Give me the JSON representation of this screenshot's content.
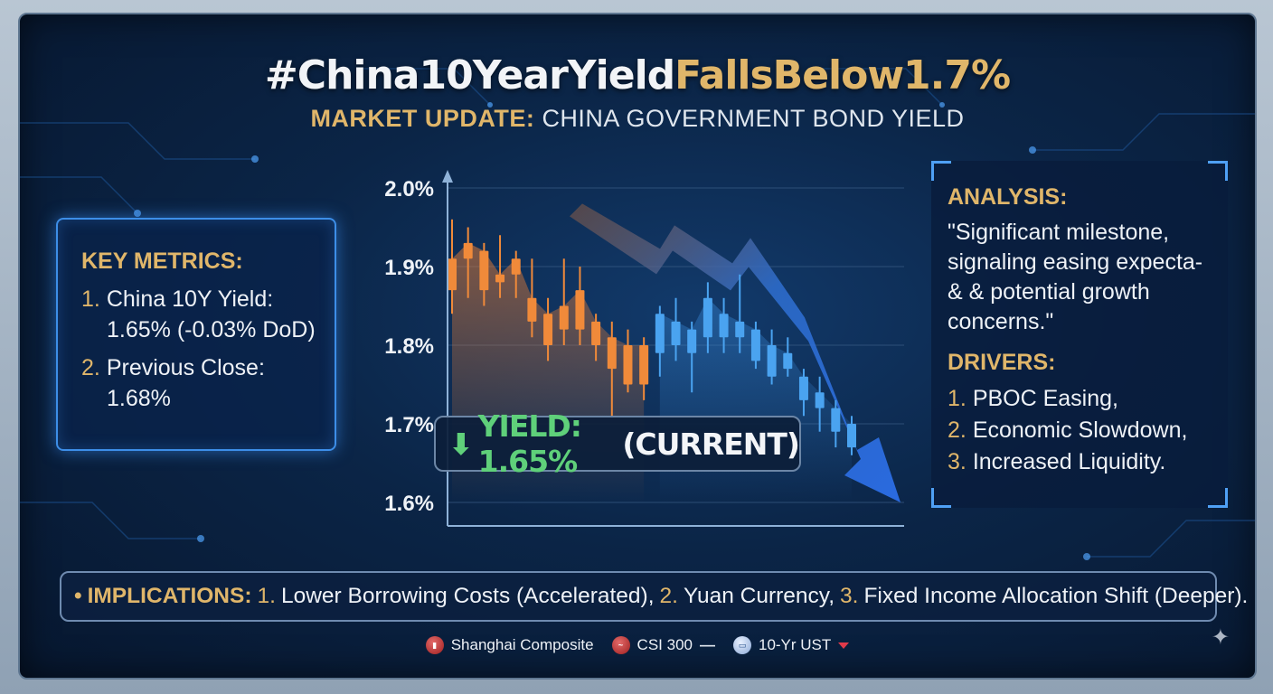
{
  "title": {
    "part1": "#China10YearYield",
    "part2": "FallsBelow1.7%"
  },
  "subtitle": {
    "part1": "MARKET UPDATE:",
    "part2": "CHINA GOVERNMENT BOND YIELD"
  },
  "key_metrics": {
    "heading": "KEY METRICS:",
    "items": [
      {
        "num": "1.",
        "label": "China 10Y Yield:",
        "value": "1.65% (-0.03% DoD)"
      },
      {
        "num": "2.",
        "label": "Previous Close:",
        "value": "1.68%"
      }
    ]
  },
  "analysis": {
    "heading": "ANALYSIS:",
    "quote_lines": [
      "\"Significant milestone,",
      "signaling easing expecta-",
      "& & potential growth",
      "concerns.\""
    ],
    "drivers_heading": "DRIVERS:",
    "drivers": [
      {
        "num": "1.",
        "text": "PBOC Easing,"
      },
      {
        "num": "2.",
        "text": "Economic Slowdown,"
      },
      {
        "num": "3.",
        "text": "Increased Liquidity."
      }
    ]
  },
  "callout": {
    "arrow": "⬇",
    "label": "YIELD: 1.65%",
    "suffix": "(CURRENT)"
  },
  "implications": {
    "bullet": "•",
    "heading": "IMPLICATIONS:",
    "items": [
      {
        "num": "1.",
        "text": "Lower Borrowing Costs (Accelerated),"
      },
      {
        "num": "2.",
        "text": "Yuan Currency,"
      },
      {
        "num": "3.",
        "text": "Fixed Income Allocation Shift (Deeper)."
      }
    ]
  },
  "tickers": [
    {
      "icon": "shanghai-composite-icon",
      "label": "Shanghai Composite",
      "trend": ""
    },
    {
      "icon": "csi-300-icon",
      "label": "CSI 300",
      "trend": "flat"
    },
    {
      "icon": "us-treasury-icon",
      "label": "10-Yr UST",
      "trend": "down"
    }
  ],
  "colors": {
    "accent_gold": "#e0b66a",
    "down_orange": "#f08a3a",
    "down_blue": "#4aa3f0",
    "current_green": "#5fd07a",
    "trend_arrow_blue": "#2f6fd0"
  },
  "chart_data": {
    "type": "candlestick",
    "title": "",
    "xlabel": "",
    "ylabel": "",
    "ylim": [
      1.6,
      2.0
    ],
    "yticks": [
      "2.0%",
      "1.9%",
      "1.8%",
      "1.7%",
      "1.6%"
    ],
    "ytick_values": [
      2.0,
      1.9,
      1.8,
      1.7,
      1.6
    ],
    "grid": true,
    "legend": "none",
    "candles": [
      {
        "open": 1.91,
        "close": 1.87,
        "high": 1.96,
        "low": 1.84,
        "color": "orange"
      },
      {
        "open": 1.93,
        "close": 1.91,
        "high": 1.95,
        "low": 1.86,
        "color": "orange"
      },
      {
        "open": 1.92,
        "close": 1.87,
        "high": 1.93,
        "low": 1.85,
        "color": "orange"
      },
      {
        "open": 1.89,
        "close": 1.88,
        "high": 1.94,
        "low": 1.86,
        "color": "orange"
      },
      {
        "open": 1.91,
        "close": 1.89,
        "high": 1.92,
        "low": 1.86,
        "color": "orange"
      },
      {
        "open": 1.86,
        "close": 1.83,
        "high": 1.91,
        "low": 1.81,
        "color": "orange"
      },
      {
        "open": 1.84,
        "close": 1.8,
        "high": 1.86,
        "low": 1.78,
        "color": "orange"
      },
      {
        "open": 1.85,
        "close": 1.82,
        "high": 1.91,
        "low": 1.8,
        "color": "orange"
      },
      {
        "open": 1.87,
        "close": 1.82,
        "high": 1.9,
        "low": 1.8,
        "color": "orange"
      },
      {
        "open": 1.83,
        "close": 1.8,
        "high": 1.84,
        "low": 1.78,
        "color": "orange"
      },
      {
        "open": 1.81,
        "close": 1.77,
        "high": 1.83,
        "low": 1.71,
        "color": "orange"
      },
      {
        "open": 1.8,
        "close": 1.75,
        "high": 1.82,
        "low": 1.74,
        "color": "orange"
      },
      {
        "open": 1.8,
        "close": 1.75,
        "high": 1.81,
        "low": 1.73,
        "color": "orange"
      },
      {
        "open": 1.79,
        "close": 1.84,
        "high": 1.85,
        "low": 1.76,
        "color": "blue"
      },
      {
        "open": 1.8,
        "close": 1.83,
        "high": 1.86,
        "low": 1.78,
        "color": "blue"
      },
      {
        "open": 1.79,
        "close": 1.82,
        "high": 1.83,
        "low": 1.74,
        "color": "blue"
      },
      {
        "open": 1.81,
        "close": 1.86,
        "high": 1.88,
        "low": 1.79,
        "color": "blue"
      },
      {
        "open": 1.81,
        "close": 1.84,
        "high": 1.86,
        "low": 1.79,
        "color": "blue"
      },
      {
        "open": 1.81,
        "close": 1.83,
        "high": 1.89,
        "low": 1.79,
        "color": "blue"
      },
      {
        "open": 1.78,
        "close": 1.82,
        "high": 1.83,
        "low": 1.77,
        "color": "blue"
      },
      {
        "open": 1.76,
        "close": 1.8,
        "high": 1.82,
        "low": 1.75,
        "color": "blue"
      },
      {
        "open": 1.77,
        "close": 1.79,
        "high": 1.81,
        "low": 1.76,
        "color": "blue"
      },
      {
        "open": 1.73,
        "close": 1.76,
        "high": 1.77,
        "low": 1.71,
        "color": "blue"
      },
      {
        "open": 1.72,
        "close": 1.74,
        "high": 1.76,
        "low": 1.69,
        "color": "blue"
      },
      {
        "open": 1.69,
        "close": 1.72,
        "high": 1.73,
        "low": 1.67,
        "color": "blue"
      },
      {
        "open": 1.67,
        "close": 1.7,
        "high": 1.71,
        "low": 1.66,
        "color": "blue"
      }
    ],
    "trend_arrow": {
      "direction": "down",
      "from_y": 1.98,
      "to_y": 1.6
    }
  }
}
